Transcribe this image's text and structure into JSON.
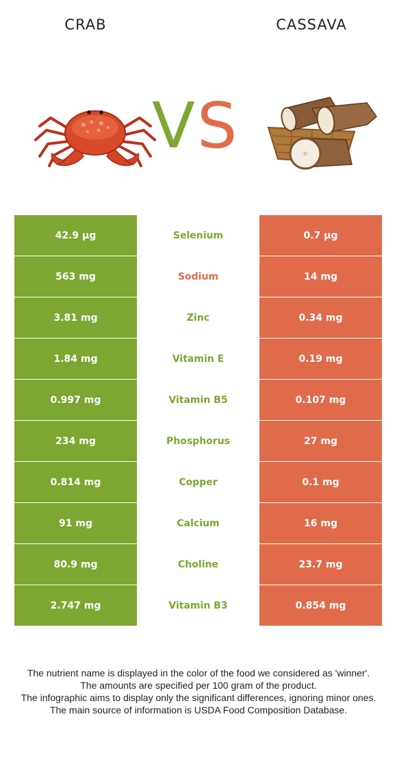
{
  "header": {
    "left_food": "CRAB",
    "right_food": "CASSAVA",
    "vs_v": "V",
    "vs_s": "S"
  },
  "colors": {
    "left_food": "#7da632",
    "right_food": "#e06b4a"
  },
  "images": {
    "left": "crab-image",
    "right": "cassava-basket-image"
  },
  "rows": [
    {
      "left": "42.9 µg",
      "nutrient": "Selenium",
      "right": "0.7 µg",
      "winner": "left"
    },
    {
      "left": "563 mg",
      "nutrient": "Sodium",
      "right": "14 mg",
      "winner": "right"
    },
    {
      "left": "3.81 mg",
      "nutrient": "Zinc",
      "right": "0.34 mg",
      "winner": "left"
    },
    {
      "left": "1.84 mg",
      "nutrient": "Vitamin E",
      "right": "0.19 mg",
      "winner": "left"
    },
    {
      "left": "0.997 mg",
      "nutrient": "Vitamin B5",
      "right": "0.107 mg",
      "winner": "left"
    },
    {
      "left": "234 mg",
      "nutrient": "Phosphorus",
      "right": "27 mg",
      "winner": "left"
    },
    {
      "left": "0.814 mg",
      "nutrient": "Copper",
      "right": "0.1 mg",
      "winner": "left"
    },
    {
      "left": "91 mg",
      "nutrient": "Calcium",
      "right": "16 mg",
      "winner": "left"
    },
    {
      "left": "80.9 mg",
      "nutrient": "Choline",
      "right": "23.7 mg",
      "winner": "left"
    },
    {
      "left": "2.747 mg",
      "nutrient": "Vitamin B3",
      "right": "0.854 mg",
      "winner": "left"
    }
  ],
  "footnotes": [
    "The nutrient name is displayed in the color of the food we considered as 'winner'.",
    "The amounts are specified per 100 gram of the product.",
    "The infographic aims to display only the significant differences, ignoring minor ones.",
    "The main source of information is USDA Food Composition Database."
  ]
}
